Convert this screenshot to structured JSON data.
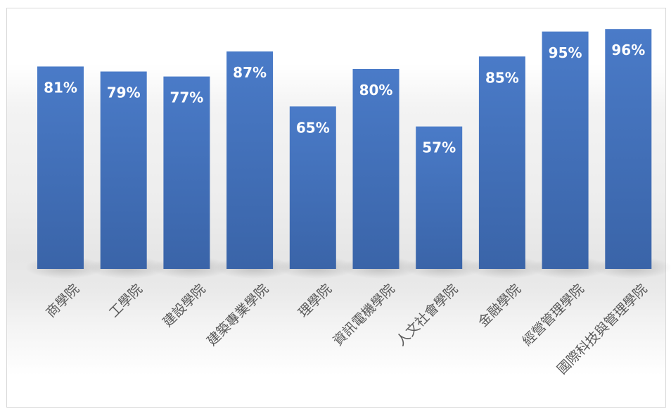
{
  "colors": {
    "bar": "#4472c4",
    "bar_dark": "#3a63ad",
    "label": "#ffffff",
    "category_text": "#595959"
  },
  "chart_data": {
    "type": "bar",
    "categories": [
      "商學院",
      "工學院",
      "建設學院",
      "建築專業學院",
      "理學院",
      "資訊電機學院",
      "人文社會學院",
      "金融學院",
      "經營管理學院",
      "國際科技與管理學院"
    ],
    "values": [
      81,
      79,
      77,
      87,
      65,
      80,
      57,
      85,
      95,
      96
    ],
    "data_labels": [
      "81%",
      "79%",
      "77%",
      "87%",
      "65%",
      "80%",
      "57%",
      "85%",
      "95%",
      "96%"
    ],
    "ylim": [
      0,
      100
    ],
    "grid": false,
    "legend": "none"
  }
}
